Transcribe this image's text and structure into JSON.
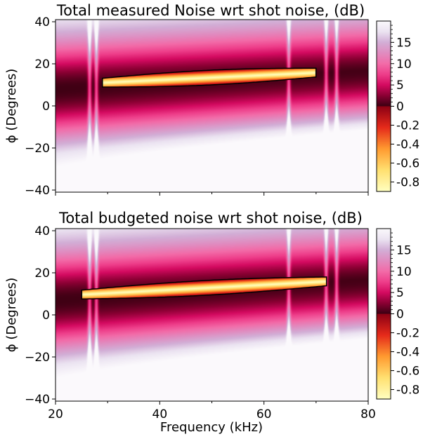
{
  "chart_data": [
    {
      "type": "heatmap",
      "title": "Total measured Noise wrt shot noise, (dB)",
      "xlabel": "",
      "ylabel": "ϕ (Degrees)",
      "xlim": [
        20,
        80
      ],
      "ylim": [
        -41,
        41
      ],
      "xticks": [],
      "yticks": [
        "40",
        "20",
        "0",
        "−20",
        "−40"
      ],
      "ytick_values": [
        40,
        20,
        0,
        -20,
        -40
      ],
      "colorbar": {
        "ticks": [
          "15",
          "10",
          "5",
          "0",
          "-0.2",
          "-0.4",
          "-0.6",
          "-0.8"
        ],
        "positive_range_db": [
          0,
          20
        ],
        "negative_range_db": [
          -0.9,
          0
        ]
      },
      "antisqueezing_peak_db": 20,
      "squeezing_region": {
        "x": [
          29,
          70
        ],
        "phi_start": 10,
        "phi_end": 17,
        "min_db": -0.9
      }
    },
    {
      "type": "heatmap",
      "title": "Total budgeted noise wrt shot noise, (dB)",
      "xlabel": "Frequency (kHz)",
      "ylabel": "ϕ (Degrees)",
      "xlim": [
        20,
        80
      ],
      "ylim": [
        -41,
        41
      ],
      "xticks": [
        "20",
        "40",
        "60",
        "80"
      ],
      "xtick_values": [
        20,
        40,
        60,
        80
      ],
      "yticks": [
        "40",
        "20",
        "0",
        "−20",
        "−40"
      ],
      "ytick_values": [
        40,
        20,
        0,
        -20,
        -40
      ],
      "colorbar": {
        "ticks": [
          "15",
          "10",
          "5",
          "0",
          "-0.2",
          "-0.4",
          "-0.6",
          "-0.8"
        ],
        "positive_range_db": [
          0,
          20
        ],
        "negative_range_db": [
          -0.9,
          0
        ]
      },
      "antisqueezing_peak_db": 20,
      "squeezing_region": {
        "x": [
          25,
          72
        ],
        "phi_start": 9,
        "phi_end": 17,
        "min_db": -0.9
      }
    }
  ],
  "colors": {
    "neg_colormap": [
      "#ffffc0",
      "#ffe070",
      "#ff9a30",
      "#e52a1a",
      "#8c0014"
    ],
    "pos_colormap": [
      "#3b0012",
      "#8a0033",
      "#d40a60",
      "#ee3e8a",
      "#f26ba8",
      "#e08cc0",
      "#d2aed6",
      "#ebe3f1",
      "#fbf9fc"
    ],
    "contour": "#000000"
  }
}
